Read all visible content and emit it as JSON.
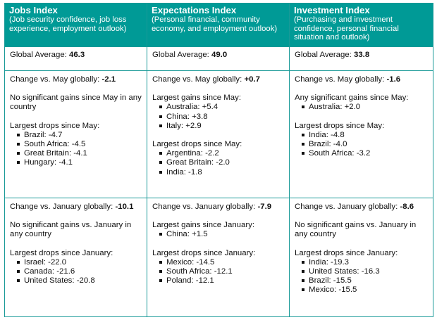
{
  "columns": [
    {
      "title": "Jobs Index",
      "subtitle": "(Job security confidence, job loss experience, employment outlook)",
      "avg_label": "Global Average: ",
      "avg_value": "46.3",
      "may": {
        "change_label": "Change vs. May globally: ",
        "change_value": "-2.1",
        "gains_text": "No significant gains since May in any country",
        "gains_items": [],
        "drops_title": "Largest drops since May:",
        "drops_items": [
          "Brazil: -4.7",
          "South Africa: -4.5",
          "Great Britain: -4.1",
          "Hungary: -4.1"
        ]
      },
      "jan": {
        "change_label": "Change vs. January globally: ",
        "change_value": "-10.1",
        "gains_text": "No significant gains vs. January in any country",
        "gains_items": [],
        "drops_title": "Largest drops since January:",
        "drops_items": [
          "Israel: -22.0",
          "Canada: -21.6",
          "United States: -20.8"
        ]
      }
    },
    {
      "title": "Expectations Index",
      "subtitle": "(Personal financial, community economy, and employment outlook)",
      "avg_label": "Global Average: ",
      "avg_value": "49.0",
      "may": {
        "change_label": "Change vs. May globally: ",
        "change_value": "+0.7",
        "gains_text": "Largest gains since May:",
        "gains_items": [
          "Australia: +5.4",
          "China: +3.8",
          "Italy: +2.9"
        ],
        "drops_title": "Largest drops since May:",
        "drops_items": [
          "Argentina: -2.2",
          "Great Britain: -2.0",
          "India: -1.8"
        ]
      },
      "jan": {
        "change_label": "Change vs. January globally: ",
        "change_value": "-7.9",
        "gains_text": "Largest gains since January:",
        "gains_items": [
          "China: +1.5"
        ],
        "drops_title": "Largest drops since January:",
        "drops_items": [
          "Mexico: -14.5",
          "South Africa: -12.1",
          "Poland: -12.1"
        ]
      }
    },
    {
      "title": "Investment Index",
      "subtitle": "(Purchasing and investment confidence, personal financial situation and outlook)",
      "avg_label": "Global Average: ",
      "avg_value": "33.8",
      "may": {
        "change_label": "Change vs. May globally: ",
        "change_value": "-1.6",
        "gains_text": "Any significant gains since May:",
        "gains_items": [
          "Australia: +2.0"
        ],
        "drops_title": "Largest drops since May:",
        "drops_items": [
          "India: -4.8",
          "Brazil: -4.0",
          "South Africa: -3.2"
        ]
      },
      "jan": {
        "change_label": "Change vs. January globally: ",
        "change_value": "-8.6",
        "gains_text": "No significant gains vs. January in any country",
        "gains_items": [],
        "drops_title": "Largest drops since January:",
        "drops_items": [
          "India: -19.3",
          "United States: -16.3",
          "Brazil: -15.5",
          "Mexico: -15.5"
        ]
      }
    }
  ],
  "colors": {
    "header_bg": "#009a96",
    "header_text": "#ffffff",
    "border": "#1a9a98"
  }
}
